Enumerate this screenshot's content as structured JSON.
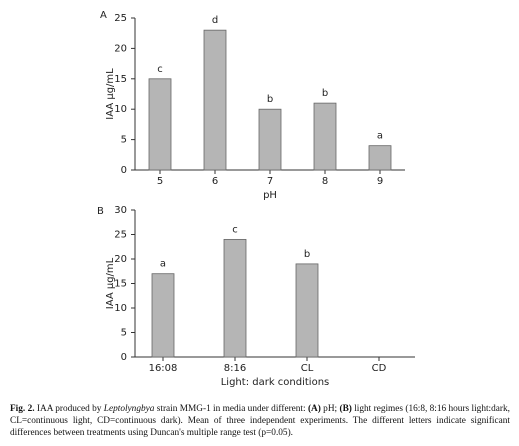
{
  "chart_data": [
    {
      "type": "bar",
      "panel": "A",
      "categories": [
        "5",
        "6",
        "7",
        "8",
        "9"
      ],
      "values": [
        15,
        23,
        10,
        11,
        4
      ],
      "letters": [
        "c",
        "d",
        "b",
        "b",
        "a"
      ],
      "xlabel": "pH",
      "ylabel": "IAA µg/mL",
      "ylim": [
        0,
        25
      ],
      "yticks": [
        0,
        5,
        10,
        15,
        20,
        25
      ],
      "color": "#b5b5b5"
    },
    {
      "type": "bar",
      "panel": "B",
      "categories": [
        "16:08",
        "8:16",
        "CL",
        "CD"
      ],
      "values": [
        17,
        24,
        19,
        null
      ],
      "letters": [
        "a",
        "c",
        "b",
        null
      ],
      "xlabel": "Light: dark conditions",
      "ylabel": "IAA µg/mL",
      "ylim": [
        0,
        30
      ],
      "yticks": [
        0,
        5,
        10,
        15,
        20,
        25,
        30
      ],
      "color": "#b5b5b5"
    }
  ],
  "caption": [
    {
      "text": "Fig. 2.",
      "style": "bold"
    },
    {
      "text": " IAA produced by ",
      "style": "normal"
    },
    {
      "text": "Leptolyngbya",
      "style": "italic"
    },
    {
      "text": " strain MMG-1 in media under different: ",
      "style": "normal"
    },
    {
      "text": "(A)",
      "style": "bold"
    },
    {
      "text": " pH; ",
      "style": "normal"
    },
    {
      "text": "(B)",
      "style": "bold"
    },
    {
      "text": " light regimes (16:8, 8:16 hours light:dark, CL=continuous light, CD=continuous dark). Mean of three independent experiments. The different letters indicate significant differences between treatments using Duncan's multiple range test (p=0.05).",
      "style": "normal"
    }
  ]
}
